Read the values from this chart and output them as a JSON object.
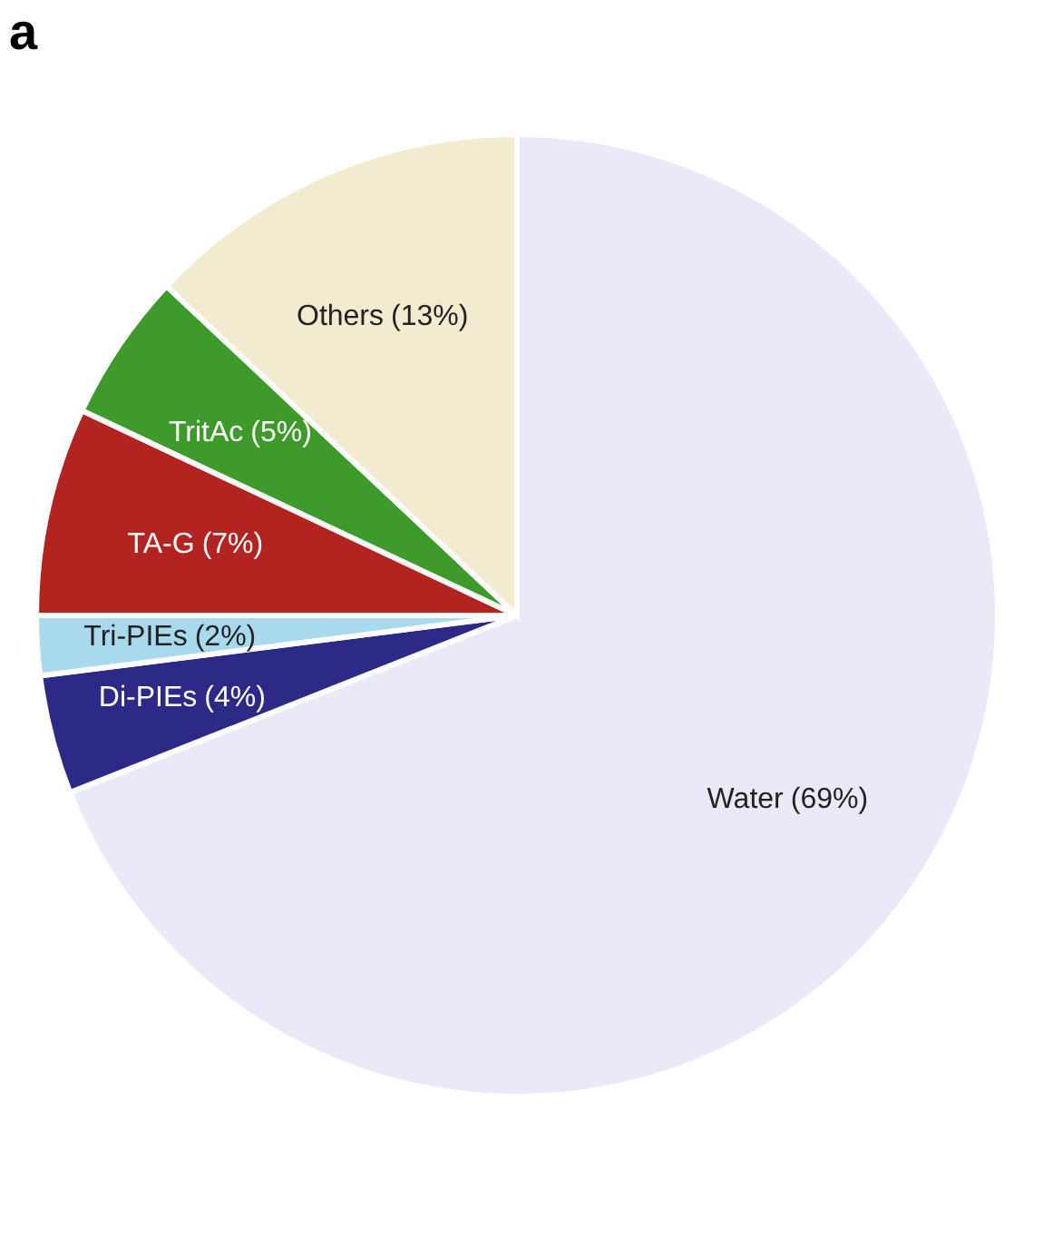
{
  "chart_data": {
    "type": "pie",
    "title": "a",
    "categories": [
      "Water",
      "Di-PIEs",
      "Tri-PIEs",
      "TA-G",
      "TritAc",
      "Others"
    ],
    "values": [
      69,
      4,
      2,
      7,
      5,
      13
    ],
    "value_labels": [
      "(69%)",
      "(4%)",
      "(2%)",
      "(7%)",
      "(5%)",
      "(13%)"
    ],
    "colors": [
      "#e9e9f7",
      "#2c2a86",
      "#a9d9ec",
      "#b3231f",
      "#3f9a2c",
      "#f2ebcf"
    ],
    "legend": false
  }
}
